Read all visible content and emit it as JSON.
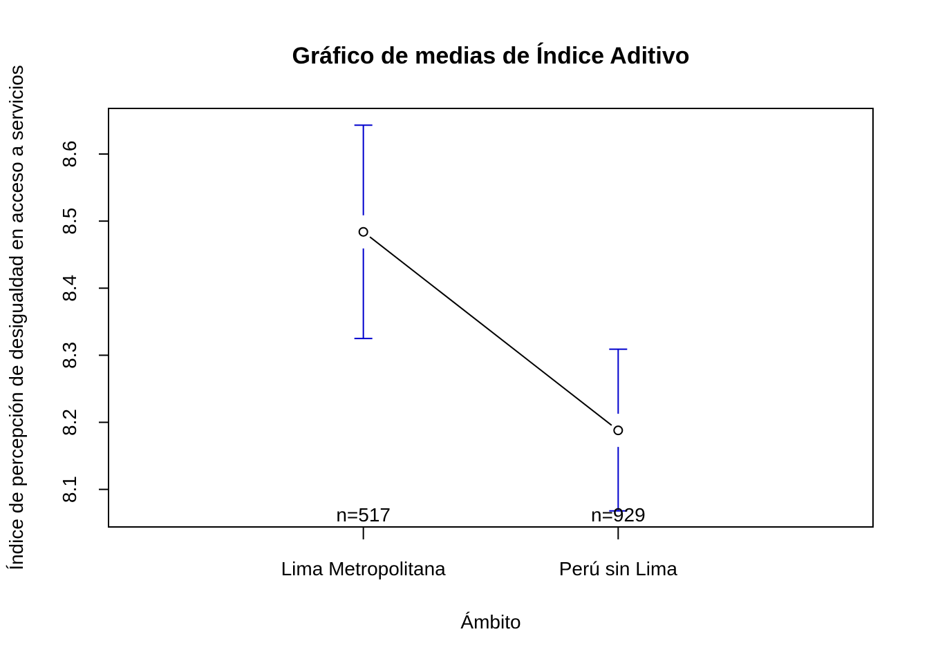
{
  "chart_data": {
    "type": "line",
    "title": "Gráfico de medias de Índice Aditivo",
    "xlabel": "Ámbito",
    "ylabel": "Índice de percepción de desigualdad en acceso a servicios",
    "categories": [
      "Lima Metropolitana",
      "Perú sin Lima"
    ],
    "means": [
      8.484,
      8.188
    ],
    "ci_upper": [
      8.643,
      8.309
    ],
    "ci_lower": [
      8.325,
      8.068
    ],
    "counts": [
      "n=517",
      "n=929"
    ],
    "yticks": [
      "8.1",
      "8.2",
      "8.3",
      "8.4",
      "8.5",
      "8.6"
    ],
    "ylim": [
      8.044,
      8.668
    ],
    "grid": false,
    "colors": {
      "line": "#000000",
      "error_bars": "#0000CD"
    }
  }
}
